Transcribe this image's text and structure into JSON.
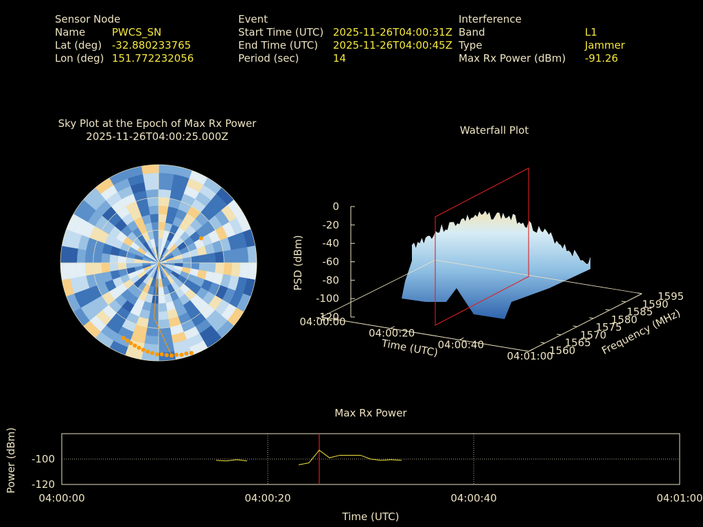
{
  "header": {
    "sensor": {
      "title": "Sensor Node",
      "name_label": "Name",
      "name_value": "PWCS_SN",
      "lat_label": "Lat (deg)",
      "lat_value": "-32.880233765",
      "lon_label": "Lon (deg)",
      "lon_value": "151.772232056"
    },
    "event": {
      "title": "Event",
      "start_label": "Start Time (UTC)",
      "start_value": "2025-11-26T04:00:31Z",
      "end_label": "End Time (UTC)",
      "end_value": "2025-11-26T04:00:45Z",
      "period_label": "Period (sec)",
      "period_value": "14"
    },
    "interference": {
      "title": "Interference",
      "band_label": "Band",
      "band_value": "L1",
      "type_label": "Type",
      "type_value": "Jammer",
      "power_label": "Max Rx Power (dBm)",
      "power_value": "-91.26"
    }
  },
  "colors": {
    "background": "#000000",
    "header_text": "#ede3c2",
    "value_text": "#f4e73f",
    "marker": "#ff9900",
    "cursor": "#dd2222",
    "trace": "#f4e73f"
  },
  "chart_data": [
    {
      "type": "scatter",
      "title": "Sky Plot at the Epoch of Max Rx Power",
      "subtitle": "2025-11-26T04:00:25.000Z",
      "projection": "polar",
      "rings": 3,
      "spokes": 4,
      "marker_color": "#ff9900",
      "points_az_el": [
        {
          "az": 60,
          "el": 45
        },
        {
          "az": 160,
          "el": 2
        },
        {
          "az": 163,
          "el": 3
        },
        {
          "az": 166,
          "el": 3
        },
        {
          "az": 169,
          "el": 4
        },
        {
          "az": 172,
          "el": 4
        },
        {
          "az": 175,
          "el": 5
        },
        {
          "az": 178,
          "el": 6
        },
        {
          "az": 181,
          "el": 6
        },
        {
          "az": 184,
          "el": 7
        },
        {
          "az": 187,
          "el": 8
        },
        {
          "az": 190,
          "el": 9
        },
        {
          "az": 193,
          "el": 10
        },
        {
          "az": 196,
          "el": 11
        },
        {
          "az": 199,
          "el": 12
        },
        {
          "az": 202,
          "el": 13
        },
        {
          "az": 205,
          "el": 14
        }
      ],
      "track_az_el": [
        {
          "az": 200,
          "el": 90
        },
        {
          "az": 185,
          "el": 40
        },
        {
          "az": 172,
          "el": 4
        }
      ]
    },
    {
      "type": "area",
      "title": "Waterfall Plot",
      "xlabel": "Time (UTC)",
      "ylabel": "Frequency (MHz)",
      "zlabel": "PSD (dBm)",
      "x_ticks": [
        "04:00:00",
        "04:00:20",
        "04:00:40",
        "04:01:00"
      ],
      "y_ticks": [
        "1560",
        "1565",
        "1570",
        "1575",
        "1580",
        "1585",
        "1590",
        "1595"
      ],
      "z_ticks": [
        "0",
        "-20",
        "-40",
        "-60",
        "-80",
        "-100",
        "-120"
      ],
      "xlim_sec": [
        0,
        60
      ],
      "ylim": [
        1560,
        1595
      ],
      "zlim": [
        -120,
        0
      ],
      "cursor_time_sec": 25,
      "cursor_color": "#dd2222"
    },
    {
      "type": "line",
      "title": "Max Rx Power",
      "xlabel": "Time (UTC)",
      "ylabel": "Power (dBm)",
      "x_ticks": [
        "04:00:00",
        "04:00:20",
        "04:00:40",
        "04:01:00"
      ],
      "y_ticks": [
        "-100",
        "-120"
      ],
      "xlim_sec": [
        0,
        60
      ],
      "ylim": [
        -120,
        -80
      ],
      "grid": true,
      "cursor_time_sec": 25,
      "series": [
        {
          "x": [
            15,
            16,
            17,
            18,
            23,
            24,
            25,
            26,
            27,
            28,
            29,
            30,
            31,
            32,
            33
          ],
          "y": [
            -101,
            -101.5,
            -100.5,
            -101.5,
            -104.5,
            -103,
            -93,
            -99,
            -97,
            -97,
            -97,
            -100,
            -101,
            -100.5,
            -101
          ]
        }
      ]
    }
  ]
}
